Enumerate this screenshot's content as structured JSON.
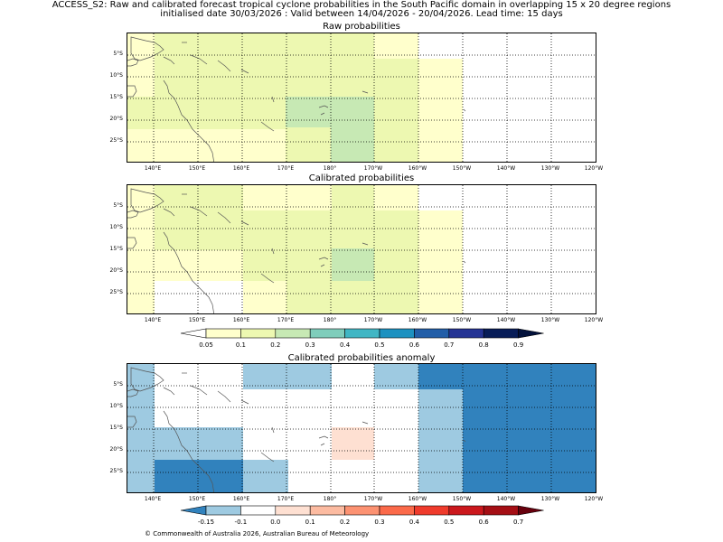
{
  "figure": {
    "title_line1": "ACCESS_S2: Raw and calibrated forecast tropical cyclone probabilities in the South Pacific domain in overlapping 15 x 20 degree regions",
    "title_line2": "initialised date 30/03/2026 :  Valid between 14/04/2026 - 20/04/2026. Lead time: 15 days",
    "copyright": "© Commonwealth of Australia 2026, Australian Bureau of Meteorology"
  },
  "axes": {
    "lon_labels": [
      "140°E",
      "150°E",
      "160°E",
      "170°E",
      "180°",
      "170°W",
      "160°W",
      "150°W",
      "140°W",
      "130°W",
      "120°W"
    ],
    "lat_labels": [
      "5°S",
      "10°S",
      "15°S",
      "20°S",
      "25°S"
    ]
  },
  "panels": [
    {
      "title": "Raw probabilities"
    },
    {
      "title": "Calibrated probabilities"
    },
    {
      "title": "Calibrated probabilities anomaly"
    }
  ],
  "colorbars": {
    "probability": {
      "labels": [
        "0.05",
        "0.1",
        "0.2",
        "0.3",
        "0.4",
        "0.5",
        "0.6",
        "0.7",
        "0.8",
        "0.9"
      ],
      "colors": [
        "#ffffff",
        "#ffffcc",
        "#edf8b1",
        "#c7e9b4",
        "#7fcdbb",
        "#41b6c4",
        "#1d91c0",
        "#225ea8",
        "#253494",
        "#081d58",
        "#03123c"
      ]
    },
    "anomaly": {
      "labels": [
        "-0.15",
        "-0.1",
        "0.0",
        "0.1",
        "0.2",
        "0.3",
        "0.4",
        "0.5",
        "0.6",
        "0.7"
      ],
      "colors": [
        "#3182bd",
        "#9ecae1",
        "#ffffff",
        "#fee0d2",
        "#fcbba1",
        "#fc9272",
        "#fb6a4a",
        "#ef3b2c",
        "#cb181d",
        "#a50f15",
        "#67000d"
      ]
    }
  }
}
